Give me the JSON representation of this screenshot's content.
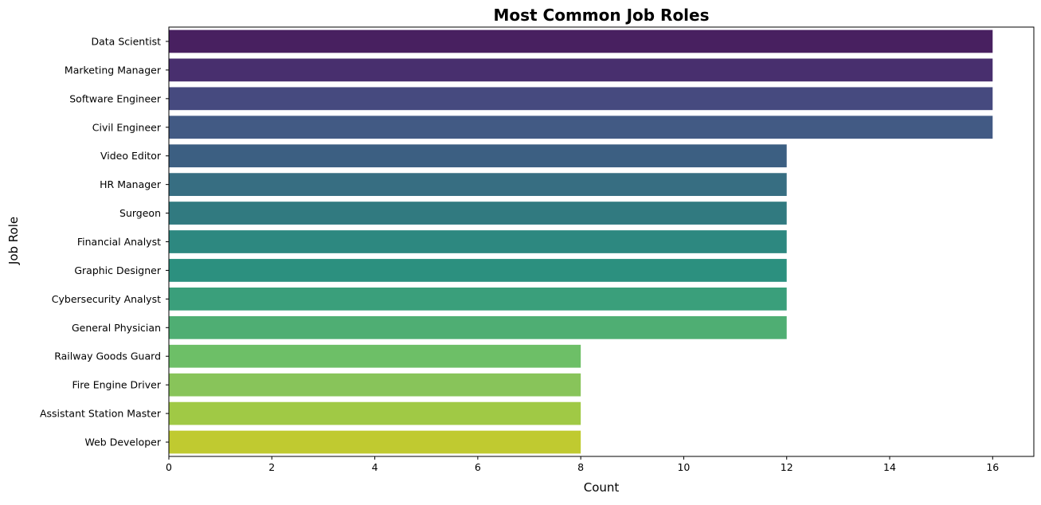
{
  "chart_data": {
    "type": "bar",
    "orientation": "horizontal",
    "title": "Most Common Job Roles",
    "xlabel": "Count",
    "ylabel": "Job Role",
    "xlim": [
      0,
      16.8
    ],
    "xticks": [
      0,
      2,
      4,
      6,
      8,
      10,
      12,
      14,
      16
    ],
    "grid": false,
    "legend": "none",
    "categories": [
      "Data Scientist",
      "Marketing Manager",
      "Software Engineer",
      "Civil Engineer",
      "Video Editor",
      "HR Manager",
      "Surgeon",
      "Financial Analyst",
      "Graphic Designer",
      "Cybersecurity Analyst",
      "General Physician",
      "Railway Goods Guard",
      "Fire Engine Driver",
      "Assistant Station Master",
      "Web Developer"
    ],
    "values": [
      16,
      16,
      16,
      16,
      12,
      12,
      12,
      12,
      12,
      12,
      12,
      8,
      8,
      8,
      8
    ],
    "colors": [
      "#482060",
      "#482f6e",
      "#464a7f",
      "#425a84",
      "#3c5f82",
      "#376e82",
      "#317a80",
      "#2d8880",
      "#2c907f",
      "#3a9f7b",
      "#4fae73",
      "#6dbf67",
      "#88c45a",
      "#a0c945",
      "#c0ca30"
    ]
  }
}
